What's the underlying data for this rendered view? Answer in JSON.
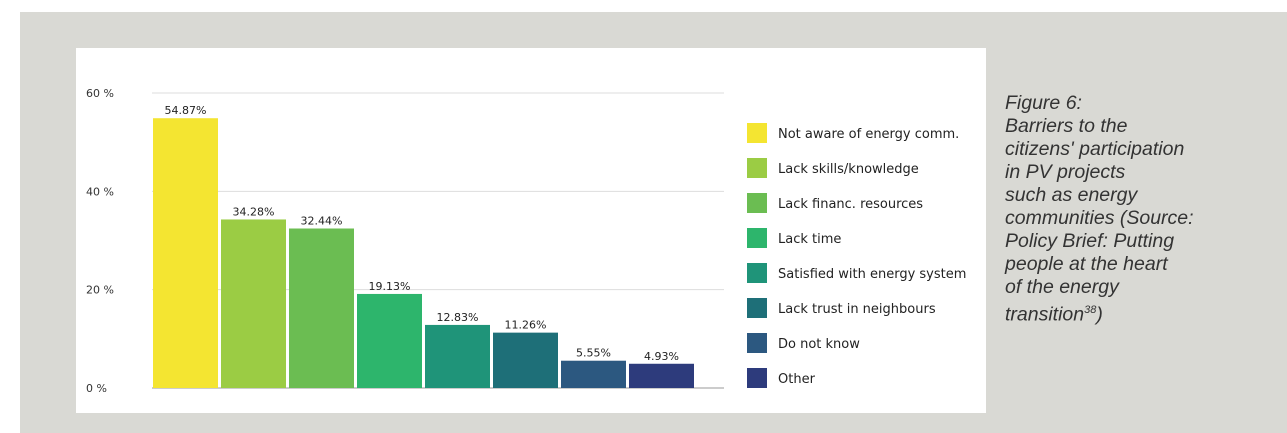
{
  "chart_data": {
    "type": "bar",
    "categories": [
      "Not aware of energy comm.",
      "Lack skills/knowledge",
      "Lack financ. resources",
      "Lack time",
      "Satisfied with energy system",
      "Lack trust in neighbours",
      "Do not know",
      "Other"
    ],
    "values": [
      54.87,
      34.28,
      32.44,
      19.13,
      12.83,
      11.26,
      5.55,
      4.93
    ],
    "value_labels": [
      "54.87%",
      "34.28%",
      "32.44%",
      "19.13%",
      "12.83%",
      "11.26%",
      "5.55%",
      "4.93%"
    ],
    "colors": [
      "#f4e531",
      "#9bcc44",
      "#6bbd52",
      "#2db56c",
      "#1f9479",
      "#1e6f78",
      "#2c5880",
      "#2d3b7c"
    ],
    "ylim": [
      0,
      60
    ],
    "yticks": [
      0,
      20,
      40,
      60
    ],
    "ytick_labels": [
      "0 %",
      "20 %",
      "40 %",
      "60 %"
    ],
    "grid": true,
    "legend_position": "right"
  },
  "caption": {
    "lines": [
      "Figure 6:",
      "Barriers to the",
      "citizens' participation",
      "in PV projects",
      "such as energy",
      "communities (Source:",
      "Policy Brief: Putting",
      "people at the heart",
      "of the energy"
    ],
    "last_line": "transition",
    "superscript": "38",
    "closing": ")"
  }
}
